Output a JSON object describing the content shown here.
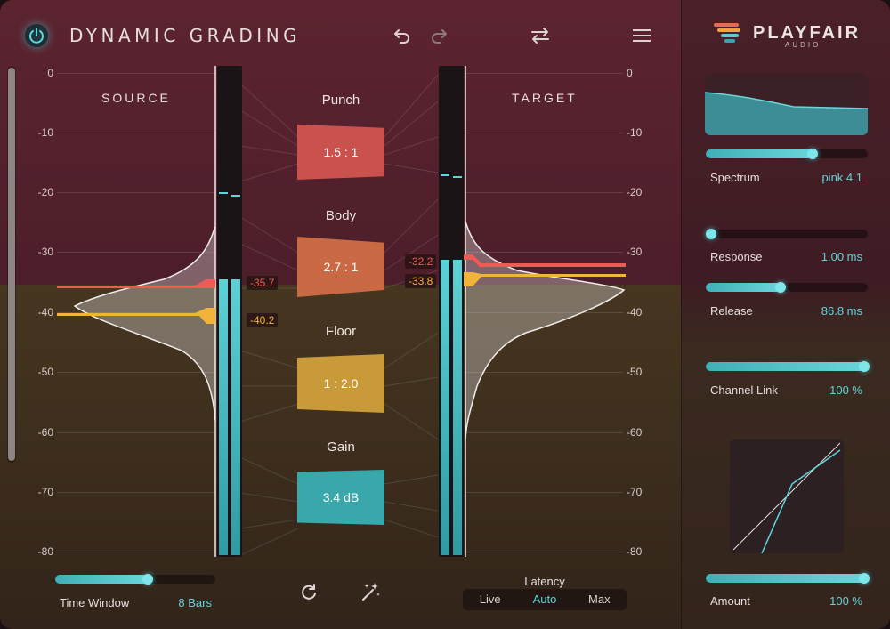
{
  "header": {
    "title": "DYNAMIC GRADING",
    "power_icon": "power-icon",
    "undo_icon": "undo-icon",
    "redo_icon": "redo-icon",
    "swap_icon": "swap-icon",
    "menu_icon": "menu-icon"
  },
  "brand": {
    "name": "PLAYFAIR",
    "sub": "AUDIO"
  },
  "sections": {
    "source": "SOURCE",
    "target": "TARGET"
  },
  "scale": {
    "ticks": [
      "0",
      "-10",
      "-20",
      "-30",
      "-40",
      "-50",
      "-60",
      "-70",
      "-80"
    ]
  },
  "stages": [
    {
      "label": "Punch",
      "value": "1.5 : 1",
      "color": "#c9524f"
    },
    {
      "label": "Body",
      "value": "2.7 : 1",
      "color": "#c96a45"
    },
    {
      "label": "Floor",
      "value": "1 : 2.0",
      "color": "#c99a3a"
    },
    {
      "label": "Gain",
      "value": "3.4 dB",
      "color": "#3aa8ab"
    }
  ],
  "levels": {
    "source_red": "-35.7",
    "source_yellow": "-40.2",
    "target_red": "-32.2",
    "target_yellow": "-33.8"
  },
  "time_window": {
    "label": "Time Window",
    "value": "8 Bars",
    "fraction": 0.58
  },
  "bottom_icons": {
    "reset": "reset-icon",
    "magic": "magic-wand-icon"
  },
  "latency": {
    "label": "Latency",
    "options": [
      "Live",
      "Auto",
      "Max"
    ],
    "selected": "Auto"
  },
  "right_panel": {
    "spectrum": {
      "label": "Spectrum",
      "value": "pink 4.1",
      "fraction": 0.66
    },
    "response": {
      "label": "Response",
      "value": "1.00 ms",
      "fraction": 0.02
    },
    "release": {
      "label": "Release",
      "value": "86.8 ms",
      "fraction": 0.46
    },
    "channel_link": {
      "label": "Channel Link",
      "value": "100 %",
      "fraction": 1.0
    },
    "amount": {
      "label": "Amount",
      "value": "100 %",
      "fraction": 1.0
    }
  },
  "colors": {
    "accent": "#5fd2d8",
    "red_line": "#ef5a55",
    "yellow_line": "#f2b33a"
  }
}
